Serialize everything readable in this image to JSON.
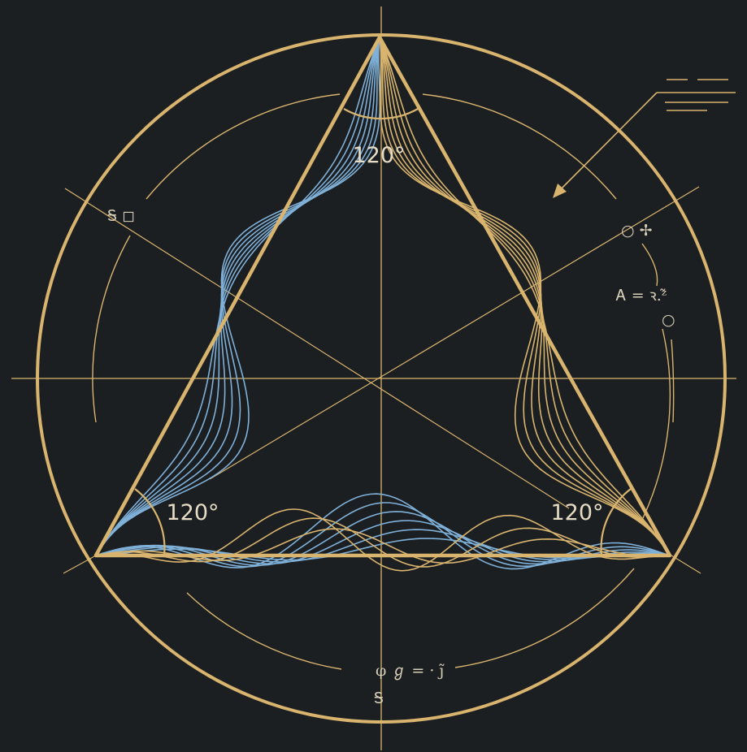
{
  "colors": {
    "background": "#1c1f22",
    "gold": "#d8b46e",
    "blue": "#7fb0d8",
    "label": "#e6dcc4"
  },
  "angles": {
    "top": "120°",
    "left": "120°",
    "right": "120°"
  },
  "annotations": {
    "left_mark": "Ꭶ ◻",
    "right_mark": "○ ✢",
    "right_equation": "Ꭺ = ꝛ.ᶻ̃",
    "right_small": "○",
    "bottom_equation": "φ ℊ = · ȷ̃",
    "bottom_small": "Ꭶ"
  },
  "icons": {
    "pointer": "arrow-icon",
    "legend": "legend-lines-icon"
  }
}
